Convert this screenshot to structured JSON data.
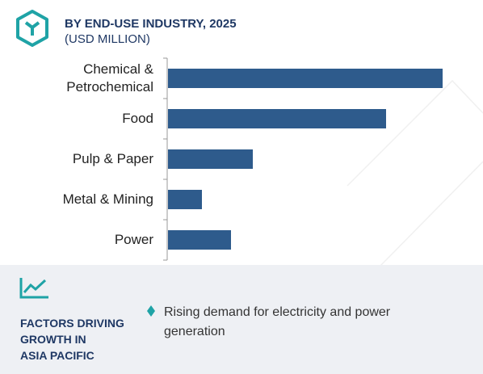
{
  "chart_data": {
    "type": "bar",
    "orientation": "horizontal",
    "title": "BY END-USE INDUSTRY, 2025",
    "subtitle": "(USD MILLION)",
    "categories": [
      "Chemical & Petrochemical",
      "Food",
      "Pulp & Paper",
      "Metal & Mining",
      "Power"
    ],
    "values": [
      340,
      270,
      105,
      42,
      78
    ],
    "color": "#2e5b8c",
    "xlim": [
      0,
      340
    ]
  },
  "factors": {
    "heading_lines": [
      "FACTORS DRIVING",
      "GROWTH IN",
      "ASIA PACIFIC"
    ],
    "bullets": [
      "Rising demand for electricity and power generation"
    ]
  }
}
